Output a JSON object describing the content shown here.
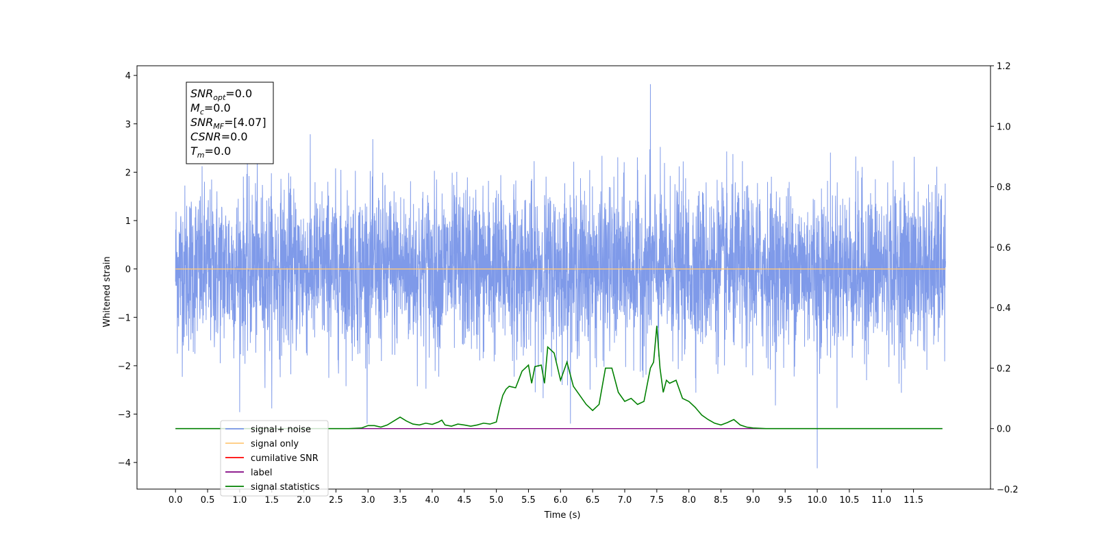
{
  "chart_data": {
    "type": "line",
    "xlabel": "Time (s)",
    "ylabel": "Whitened strain",
    "xlim": [
      -0.6,
      12.7
    ],
    "ylim": [
      -4.55,
      4.2
    ],
    "y2lim": [
      -0.2,
      1.2
    ],
    "x_ticks": [
      "0.0",
      "0.5",
      "1.0",
      "1.5",
      "2.0",
      "2.5",
      "3.0",
      "3.5",
      "4.0",
      "4.5",
      "5.0",
      "5.5",
      "6.0",
      "6.5",
      "7.0",
      "7.5",
      "8.0",
      "8.5",
      "9.0",
      "9.5",
      "10.0",
      "10.5",
      "11.0",
      "11.5"
    ],
    "y_ticks": [
      "4",
      "3",
      "2",
      "1",
      "0",
      "−1",
      "−2",
      "−3",
      "−4"
    ],
    "y2_ticks": [
      "1.2",
      "1.0",
      "0.8",
      "0.6",
      "0.4",
      "0.2",
      "0.0",
      "−0.2"
    ],
    "annotation": {
      "lines": [
        {
          "sym": "SNR",
          "sub": "opt",
          "val": "=0.0"
        },
        {
          "sym": "M",
          "sub": "c",
          "val": "=0.0"
        },
        {
          "sym": "SNR",
          "sub": "MF",
          "val": "=[4.07]"
        },
        {
          "sym": "CSNR",
          "sub": "",
          "val": "=0.0"
        },
        {
          "sym": "T",
          "sub": "m",
          "val": "=0.0"
        }
      ]
    },
    "legend": {
      "position": "lower-left",
      "items": [
        {
          "label": "signal+ noise",
          "color": "#7895e8"
        },
        {
          "label": "signal only",
          "color": "#ffc878"
        },
        {
          "label": "cumilative SNR",
          "color": "#ff0000"
        },
        {
          "label": "label",
          "color": "#800080"
        },
        {
          "label": "signal statistics",
          "color": "#008000"
        }
      ]
    },
    "series": [
      {
        "name": "signal+ noise",
        "color": "#7895e8",
        "description_values": {
          "x_start": 0.0,
          "x_end": 12.0,
          "typical_min": -2.5,
          "typical_max": 2.5,
          "max_peak": 3.82,
          "min_peak": -4.12
        }
      },
      {
        "name": "signal only",
        "color": "#ffc878",
        "x": [
          0.0,
          12.0
        ],
        "y": [
          0.0,
          0.0
        ]
      },
      {
        "name": "label",
        "color": "#800080",
        "axis": "right",
        "x": [
          0.0,
          11.95
        ],
        "y": [
          0.0,
          0.0
        ]
      },
      {
        "name": "signal statistics",
        "color": "#008000",
        "axis": "right",
        "x": [
          0.0,
          2.7,
          2.9,
          3.0,
          3.1,
          3.2,
          3.3,
          3.4,
          3.5,
          3.6,
          3.7,
          3.8,
          3.9,
          4.0,
          4.1,
          4.15,
          4.2,
          4.3,
          4.4,
          4.5,
          4.6,
          4.7,
          4.8,
          4.9,
          5.0,
          5.05,
          5.1,
          5.15,
          5.2,
          5.3,
          5.4,
          5.5,
          5.55,
          5.6,
          5.7,
          5.75,
          5.8,
          5.9,
          6.0,
          6.1,
          6.2,
          6.3,
          6.4,
          6.5,
          6.6,
          6.7,
          6.8,
          6.9,
          7.0,
          7.1,
          7.2,
          7.3,
          7.4,
          7.45,
          7.5,
          7.55,
          7.6,
          7.65,
          7.7,
          7.8,
          7.9,
          8.0,
          8.1,
          8.2,
          8.3,
          8.4,
          8.5,
          8.6,
          8.7,
          8.8,
          8.9,
          9.0,
          9.2,
          9.5,
          11.95
        ],
        "y": [
          0.0,
          0.0,
          0.002,
          0.01,
          0.01,
          0.005,
          0.012,
          0.025,
          0.038,
          0.025,
          0.015,
          0.012,
          0.018,
          0.014,
          0.022,
          0.028,
          0.012,
          0.008,
          0.015,
          0.012,
          0.008,
          0.012,
          0.018,
          0.015,
          0.022,
          0.07,
          0.11,
          0.13,
          0.14,
          0.135,
          0.19,
          0.21,
          0.15,
          0.205,
          0.21,
          0.15,
          0.27,
          0.25,
          0.16,
          0.22,
          0.14,
          0.11,
          0.08,
          0.06,
          0.08,
          0.2,
          0.2,
          0.12,
          0.09,
          0.1,
          0.08,
          0.09,
          0.2,
          0.22,
          0.34,
          0.2,
          0.12,
          0.16,
          0.15,
          0.16,
          0.1,
          0.09,
          0.07,
          0.045,
          0.03,
          0.018,
          0.012,
          0.02,
          0.03,
          0.012,
          0.005,
          0.002,
          0.0,
          0.0,
          0.0
        ]
      }
    ]
  }
}
